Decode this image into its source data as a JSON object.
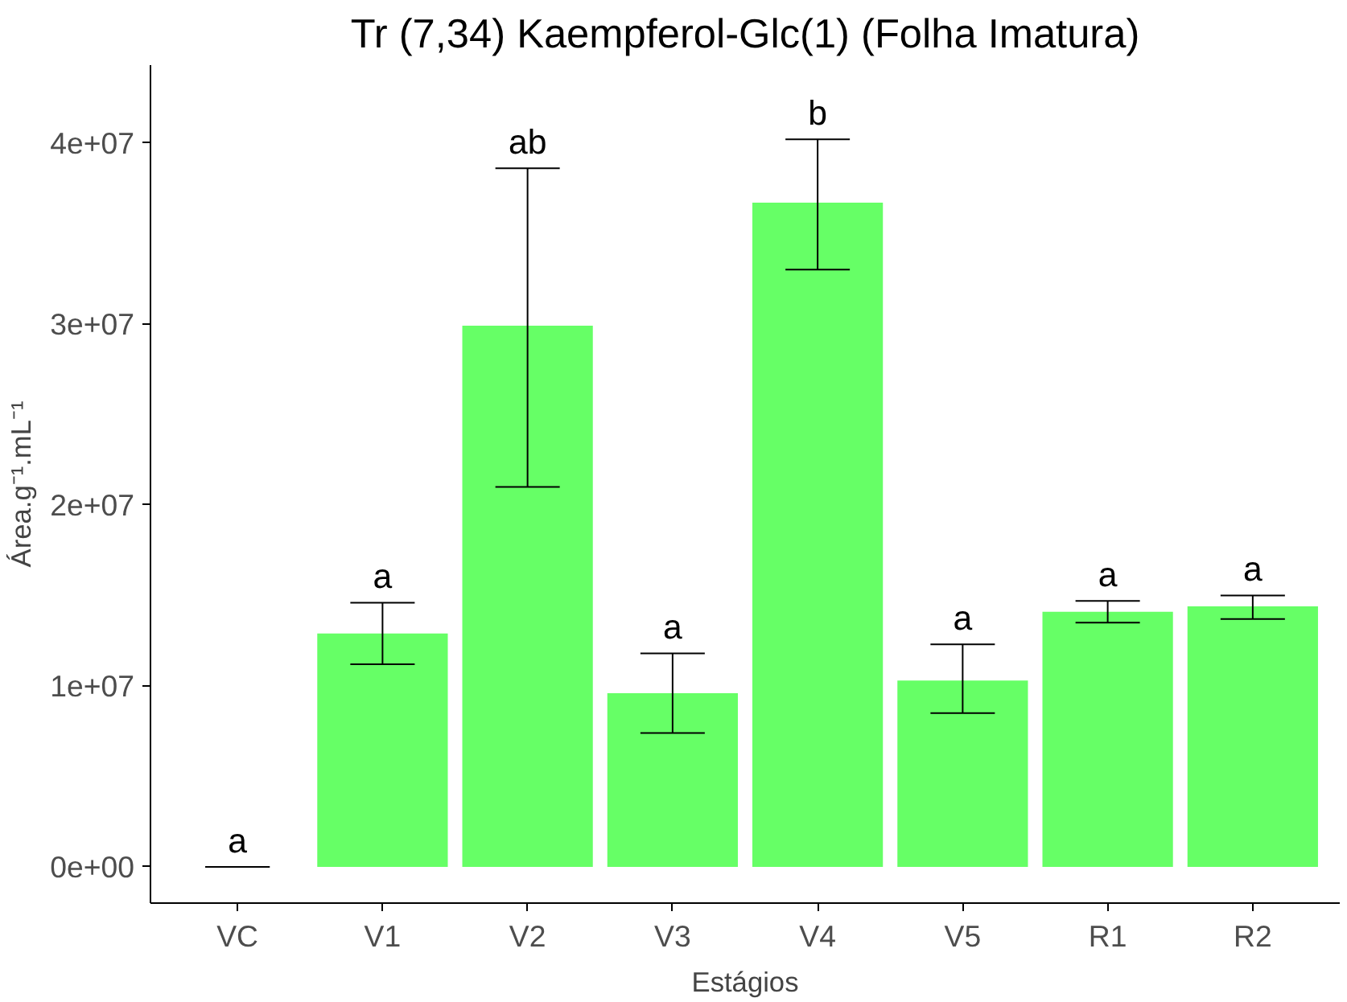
{
  "chart_data": {
    "type": "bar",
    "title": "Tr (7,34) Kaempferol-Glc(1) (Folha Imatura)",
    "xlabel": "Estágios",
    "ylabel": "Área.g⁻¹.mL⁻¹",
    "categories": [
      "VC",
      "V1",
      "V2",
      "V3",
      "V4",
      "V5",
      "R1",
      "R2"
    ],
    "values": [
      0,
      12900000,
      29900000,
      9600000,
      36700000,
      10300000,
      14100000,
      14400000
    ],
    "color": "#66ff66",
    "errors": [
      [
        0,
        0
      ],
      [
        11200000,
        14600000
      ],
      [
        21000000,
        38600000
      ],
      [
        7400000,
        11800000
      ],
      [
        33000000,
        40200000
      ],
      [
        8500000,
        12300000
      ],
      [
        13500000,
        14700000
      ],
      [
        13700000,
        15000000
      ]
    ],
    "annotations": [
      {
        "text": "a",
        "x": "VC",
        "y": 0
      },
      {
        "text": "a",
        "x": "V1",
        "y": 14600000
      },
      {
        "text": "ab",
        "x": "V2",
        "y": 38600000
      },
      {
        "text": "a",
        "x": "V3",
        "y": 11800000
      },
      {
        "text": "b",
        "x": "V4",
        "y": 40200000
      },
      {
        "text": "a",
        "x": "V5",
        "y": 12300000
      },
      {
        "text": "a",
        "x": "R1",
        "y": 14700000
      },
      {
        "text": "a",
        "x": "R2",
        "y": 15000000
      }
    ],
    "ylim": [
      -2000000,
      44300000
    ],
    "yticks": [
      {
        "value": 0,
        "label": "0e+00"
      },
      {
        "value": 10000000,
        "label": "1e+07"
      },
      {
        "value": 20000000,
        "label": "2e+07"
      },
      {
        "value": 30000000,
        "label": "3e+07"
      },
      {
        "value": 40000000,
        "label": "4e+07"
      }
    ],
    "grid": false
  }
}
